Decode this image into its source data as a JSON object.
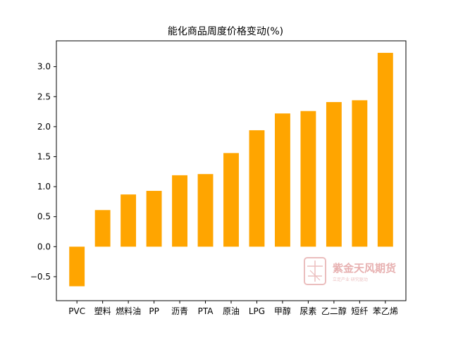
{
  "chart_data": {
    "type": "bar",
    "title": "能化商品周度价格变动(%)",
    "categories": [
      "PVC",
      "塑料",
      "燃料油",
      "PP",
      "沥青",
      "PTA",
      "原油",
      "LPG",
      "甲醇",
      "尿素",
      "乙二醇",
      "短纤",
      "苯乙烯"
    ],
    "values": [
      -0.66,
      0.61,
      0.87,
      0.93,
      1.19,
      1.21,
      1.56,
      1.94,
      2.22,
      2.26,
      2.41,
      2.44,
      3.23
    ],
    "ylim": [
      -0.9,
      3.43
    ],
    "yticks": [
      "−0.5",
      "0.0",
      "0.5",
      "1.0",
      "1.5",
      "2.0",
      "2.5",
      "3.0"
    ],
    "ytick_values": [
      -0.5,
      0,
      0.5,
      1.0,
      1.5,
      2.0,
      2.5,
      3.0
    ],
    "bar_color": "#FFA500",
    "xlabel": "",
    "ylabel": ""
  },
  "watermark": {
    "name": "紫金天风期货",
    "tagline": "立足产业  研究驱动",
    "seal_text": "紫天金风",
    "color": "#e3a3a3"
  }
}
